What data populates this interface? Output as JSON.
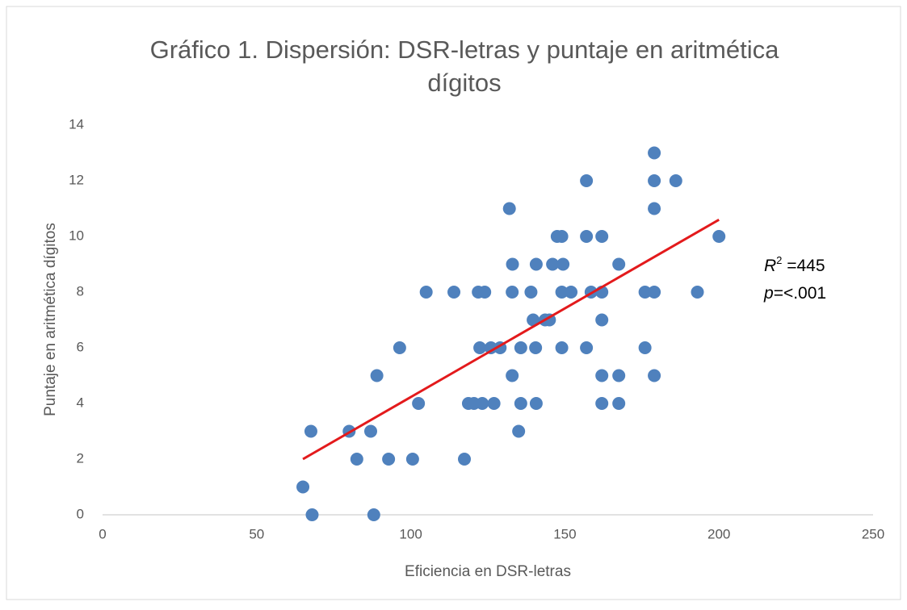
{
  "chart_data": {
    "type": "scatter",
    "title_lines": [
      "Gráfico 1. Dispersión: DSR-letras y puntaje en aritmética",
      "dígitos"
    ],
    "x_label": "Eficiencia en DSR-letras",
    "y_label": "Puntaje en aritmética dígitos",
    "xlim": [
      0,
      250
    ],
    "xticks": [
      0,
      50,
      100,
      150,
      200,
      250
    ],
    "ylim": [
      0,
      14
    ],
    "yticks": [
      0,
      2,
      4,
      6,
      8,
      10,
      12,
      14
    ],
    "grid": false,
    "series": [
      {
        "color": "#4f81bd",
        "x": [
          65,
          68,
          67.6,
          80,
          82.5,
          87,
          88,
          89,
          92.8,
          96.4,
          100.6,
          102.5,
          105,
          114,
          117.4,
          118.7,
          120.5,
          121.9,
          122.4,
          123.2,
          124,
          127,
          126,
          129,
          132,
          132.9,
          133,
          132.9,
          135,
          135.7,
          135.7,
          139,
          139.7,
          140.5,
          140.7,
          140.7,
          143.6,
          145,
          146,
          147.5,
          149,
          149,
          149.4,
          149,
          152,
          157,
          157,
          157,
          158.5,
          162,
          162,
          162,
          162,
          162,
          167.5,
          167.5,
          167.5,
          176,
          176,
          179,
          179,
          179,
          179,
          179,
          186,
          193,
          200
        ],
        "values": [
          1,
          0,
          3,
          3,
          2,
          3,
          0,
          5,
          2,
          6,
          2,
          4,
          8,
          8,
          2,
          4,
          4,
          8,
          6,
          4,
          8,
          4,
          6,
          6,
          11,
          5,
          9,
          8,
          3,
          4,
          6,
          8,
          7,
          6,
          4,
          9,
          7,
          7,
          9,
          10,
          10,
          8,
          9,
          6,
          8,
          12,
          10,
          6,
          8,
          10,
          8,
          7,
          5,
          4,
          9,
          5,
          4,
          8,
          6,
          13,
          12,
          11,
          8,
          5,
          12,
          8,
          10
        ]
      }
    ],
    "trendline": {
      "color": "#e31a1c",
      "x": [
        65,
        200
      ],
      "values": [
        2.0,
        10.6
      ]
    },
    "annotation": {
      "r_label": "R",
      "r_sup": "2",
      "r_text": " =445",
      "p_label": "p",
      "p_text": "=<.001"
    }
  }
}
